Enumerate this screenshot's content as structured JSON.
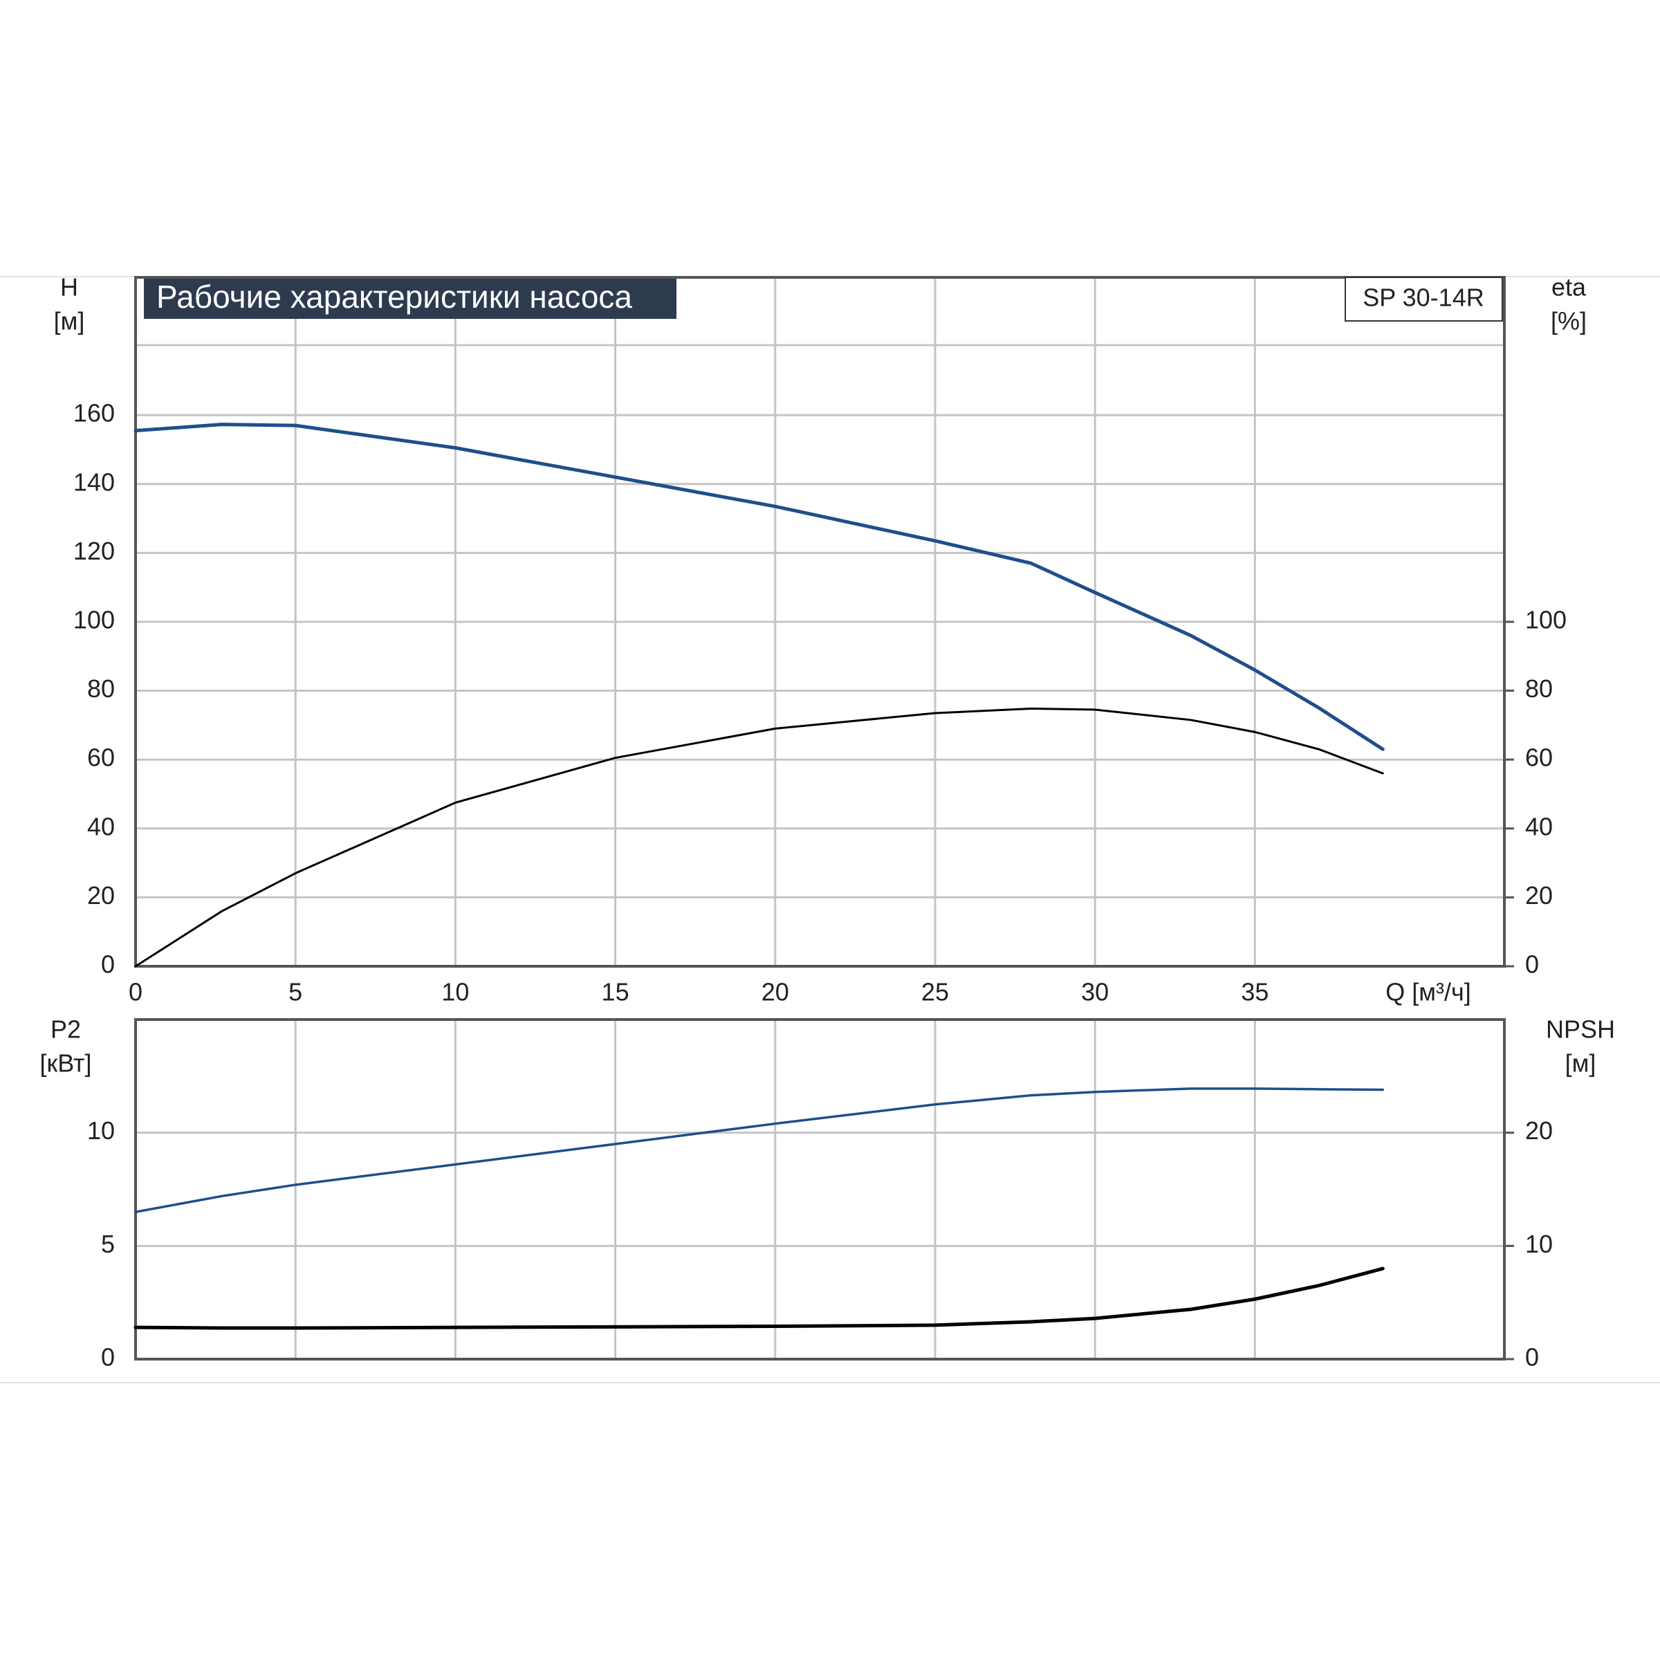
{
  "chart_data": [
    {
      "type": "line",
      "title": "Рабочие характеристики насоса",
      "model_label": "SP 30-14R",
      "xlabel": "Q [м³/ч]",
      "ylabel": "H",
      "ylabel_unit": "[м]",
      "y2label": "eta",
      "y2label_unit": "[%]",
      "x": [
        0,
        2.7,
        5,
        10,
        15,
        20,
        25,
        28,
        30,
        33,
        35,
        37,
        39
      ],
      "xlim": [
        0,
        42.8
      ],
      "xticks": [
        0,
        5,
        10,
        15,
        20,
        25,
        30,
        35
      ],
      "xtick_labels": true,
      "ylim": [
        0,
        200
      ],
      "yticks": [
        0,
        20,
        40,
        60,
        80,
        100,
        120,
        140,
        160
      ],
      "y2lim": [
        0,
        200
      ],
      "y2ticks": [
        0,
        20,
        40,
        60,
        80,
        100
      ],
      "grid": true,
      "series": [
        {
          "name": "H",
          "color": "#1f4e8c",
          "values": [
            155.5,
            157.3,
            157,
            150.5,
            142,
            133.5,
            123.5,
            117,
            108.5,
            96,
            86,
            75,
            63
          ]
        },
        {
          "name": "eta",
          "color": "#000000",
          "axis": "y2",
          "values": [
            0,
            16,
            27,
            47.5,
            60.5,
            69,
            73.5,
            74.8,
            74.5,
            71.5,
            68,
            63,
            56
          ]
        }
      ]
    },
    {
      "type": "line",
      "ylabel": "P2",
      "ylabel_unit": "[кВт]",
      "y2label": "NPSH",
      "y2label_unit": "[м]",
      "x": [
        0,
        2.7,
        5,
        10,
        15,
        20,
        25,
        28,
        30,
        33,
        35,
        37,
        39
      ],
      "xlim": [
        0,
        42.8
      ],
      "xticks": [
        0,
        5,
        10,
        15,
        20,
        25,
        30,
        35
      ],
      "xtick_labels": false,
      "ylim": [
        0,
        15
      ],
      "yticks": [
        0,
        5,
        10
      ],
      "y2lim": [
        0,
        30
      ],
      "y2ticks": [
        0,
        10,
        20
      ],
      "grid": true,
      "series": [
        {
          "name": "P2",
          "color": "#1f4e8c",
          "values": [
            6.5,
            7.2,
            7.7,
            8.6,
            9.5,
            10.4,
            11.25,
            11.65,
            11.8,
            11.95,
            11.95,
            11.92,
            11.9
          ]
        },
        {
          "name": "NPSH",
          "color": "#000000",
          "axis": "y2",
          "values": [
            2.8,
            2.75,
            2.75,
            2.8,
            2.85,
            2.9,
            3.0,
            3.3,
            3.6,
            4.4,
            5.3,
            6.5,
            8.0
          ]
        }
      ]
    }
  ]
}
